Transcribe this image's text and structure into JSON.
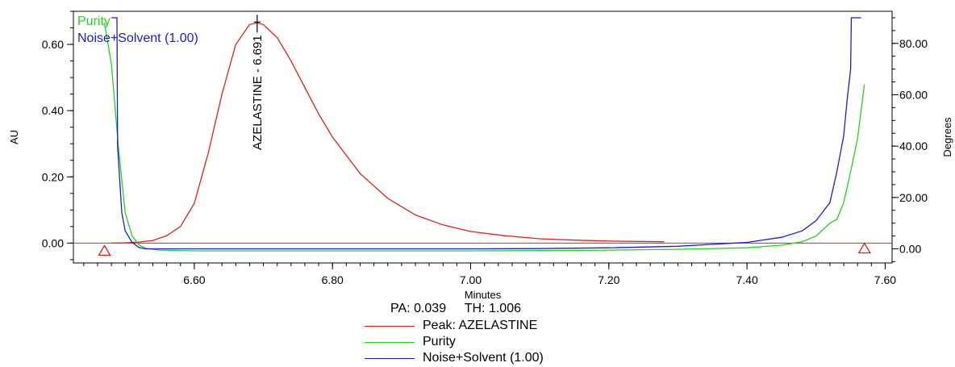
{
  "chart_data": {
    "type": "line",
    "xlabel": "Minutes",
    "ylabel": "AU",
    "y2label": "Degrees",
    "xlim": [
      6.425,
      7.61
    ],
    "ylim": [
      -0.06,
      0.7
    ],
    "y2lim": [
      -5.5,
      92.5
    ],
    "xticks": [
      "6.60",
      "6.80",
      "7.00",
      "7.20",
      "7.40",
      "7.60"
    ],
    "yticks": [
      "0.00",
      "0.20",
      "0.40",
      "0.60"
    ],
    "y2ticks": [
      "0.00",
      "20.00",
      "40.00",
      "60.00",
      "80.00"
    ],
    "grid": false,
    "peak_annotation": {
      "label": "AZELASTINE - 6.691",
      "x": 6.691,
      "y": 0.665
    },
    "baseline_markers": [
      {
        "x": 6.47,
        "y": -0.022
      },
      {
        "x": 7.57,
        "y": -0.015
      }
    ],
    "inline_legend": [
      "Purity",
      "Noise+Solvent (1.00)"
    ],
    "series": [
      {
        "name": "Peak: AZELASTINE",
        "axis": "left",
        "color": "#e0201b",
        "x": [
          6.48,
          6.5,
          6.52,
          6.54,
          6.56,
          6.58,
          6.6,
          6.62,
          6.64,
          6.66,
          6.68,
          6.691,
          6.7,
          6.72,
          6.74,
          6.76,
          6.78,
          6.8,
          6.84,
          6.88,
          6.92,
          6.96,
          7.0,
          7.05,
          7.1,
          7.15,
          7.2,
          7.28
        ],
        "y": [
          0.0,
          0.001,
          0.003,
          0.008,
          0.022,
          0.05,
          0.12,
          0.27,
          0.45,
          0.6,
          0.66,
          0.665,
          0.66,
          0.62,
          0.55,
          0.47,
          0.39,
          0.32,
          0.21,
          0.135,
          0.085,
          0.055,
          0.035,
          0.022,
          0.013,
          0.009,
          0.006,
          0.004
        ]
      },
      {
        "name": "Purity",
        "axis": "right",
        "color": "#1cd61c",
        "x": [
          6.47,
          6.48,
          6.49,
          6.5,
          6.51,
          6.52,
          6.53,
          6.55,
          6.6,
          6.8,
          7.0,
          7.1,
          7.2,
          7.3,
          7.4,
          7.45,
          7.48,
          7.5,
          7.52,
          7.53,
          7.54,
          7.55,
          7.56,
          7.57
        ],
        "y": [
          88.0,
          72.0,
          40.0,
          14.0,
          5.0,
          1.5,
          0.2,
          -0.5,
          -0.8,
          -0.8,
          -0.8,
          -0.7,
          -0.5,
          -0.2,
          0.4,
          1.4,
          2.8,
          5.0,
          10.0,
          11.5,
          18.0,
          30.0,
          43.0,
          64.0
        ]
      },
      {
        "name": "Noise+Solvent (1.00)",
        "axis": "right",
        "color": "#1c1cd6",
        "x": [
          6.48,
          6.488,
          6.489,
          6.495,
          6.5,
          6.51,
          6.52,
          6.53,
          6.55,
          6.6,
          6.8,
          7.0,
          7.1,
          7.2,
          7.3,
          7.4,
          7.45,
          7.48,
          7.5,
          7.52,
          7.525,
          7.53,
          7.54,
          7.545,
          7.55,
          7.551,
          7.555,
          7.565
        ],
        "y": [
          90.0,
          90.0,
          40.0,
          14.0,
          7.0,
          2.5,
          0.5,
          0.0,
          0.0,
          0.0,
          0.0,
          0.0,
          0.1,
          0.4,
          1.0,
          2.5,
          4.5,
          7.0,
          11.0,
          18.0,
          24.0,
          30.0,
          44.0,
          58.0,
          70.0,
          90.0,
          90.0,
          90.0
        ]
      }
    ]
  },
  "legend": {
    "pa_label": "PA:",
    "pa_value": "0.039",
    "th_label": "TH:",
    "th_value": "1.006",
    "entries": [
      "Peak: AZELASTINE",
      "Purity",
      "Noise+Solvent (1.00)"
    ],
    "colors": [
      "#e0201b",
      "#1cd61c",
      "#1c1cd6"
    ]
  }
}
